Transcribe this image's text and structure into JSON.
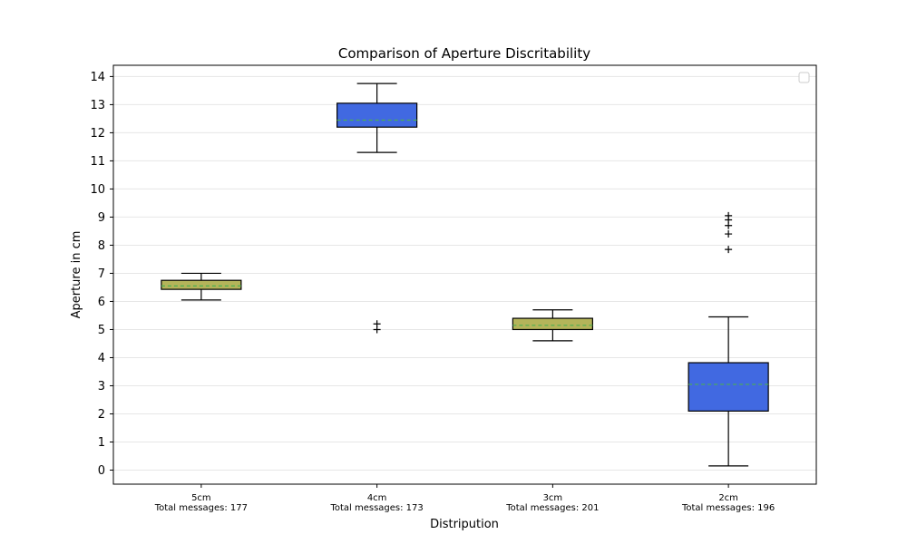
{
  "chart_data": {
    "type": "boxplot",
    "title": "Comparison of Aperture Discritability",
    "xlabel": "Distripution",
    "ylabel": "Aperture in cm",
    "ylim": [
      -0.5,
      14.4
    ],
    "yticks": [
      0,
      1,
      2,
      3,
      4,
      5,
      6,
      7,
      8,
      9,
      10,
      11,
      12,
      13,
      14
    ],
    "grid": "horizontal",
    "legend": "top-right (empty)",
    "colors": {
      "olive": "#b4b45a",
      "blue": "#4169e1",
      "median": "#4caf50",
      "mean_line": "#2e8b57"
    },
    "categories": [
      {
        "name": "5cm",
        "total_label": "Total messages: 177",
        "color": "#b4b45a",
        "whisker_low": 6.05,
        "q1": 6.43,
        "median": 6.55,
        "q3": 6.75,
        "whisker_high": 7.0,
        "outliers": []
      },
      {
        "name": "4cm",
        "total_label": "Total messages: 173",
        "color": "#4169e1",
        "whisker_low": 11.3,
        "q1": 12.2,
        "median": 12.45,
        "q3": 13.05,
        "whisker_high": 13.75,
        "outliers": [
          5.0,
          5.2
        ]
      },
      {
        "name": "3cm",
        "total_label": "Total messages: 201",
        "color": "#b4b45a",
        "whisker_low": 4.6,
        "q1": 5.0,
        "median": 5.15,
        "q3": 5.4,
        "whisker_high": 5.7,
        "outliers": []
      },
      {
        "name": "2cm",
        "total_label": "Total messages: 196",
        "color": "#4169e1",
        "whisker_low": 0.15,
        "q1": 2.1,
        "median": 3.05,
        "q3": 3.82,
        "whisker_high": 5.45,
        "outliers": [
          7.85,
          8.4,
          8.7,
          8.9,
          9.05
        ]
      }
    ]
  }
}
